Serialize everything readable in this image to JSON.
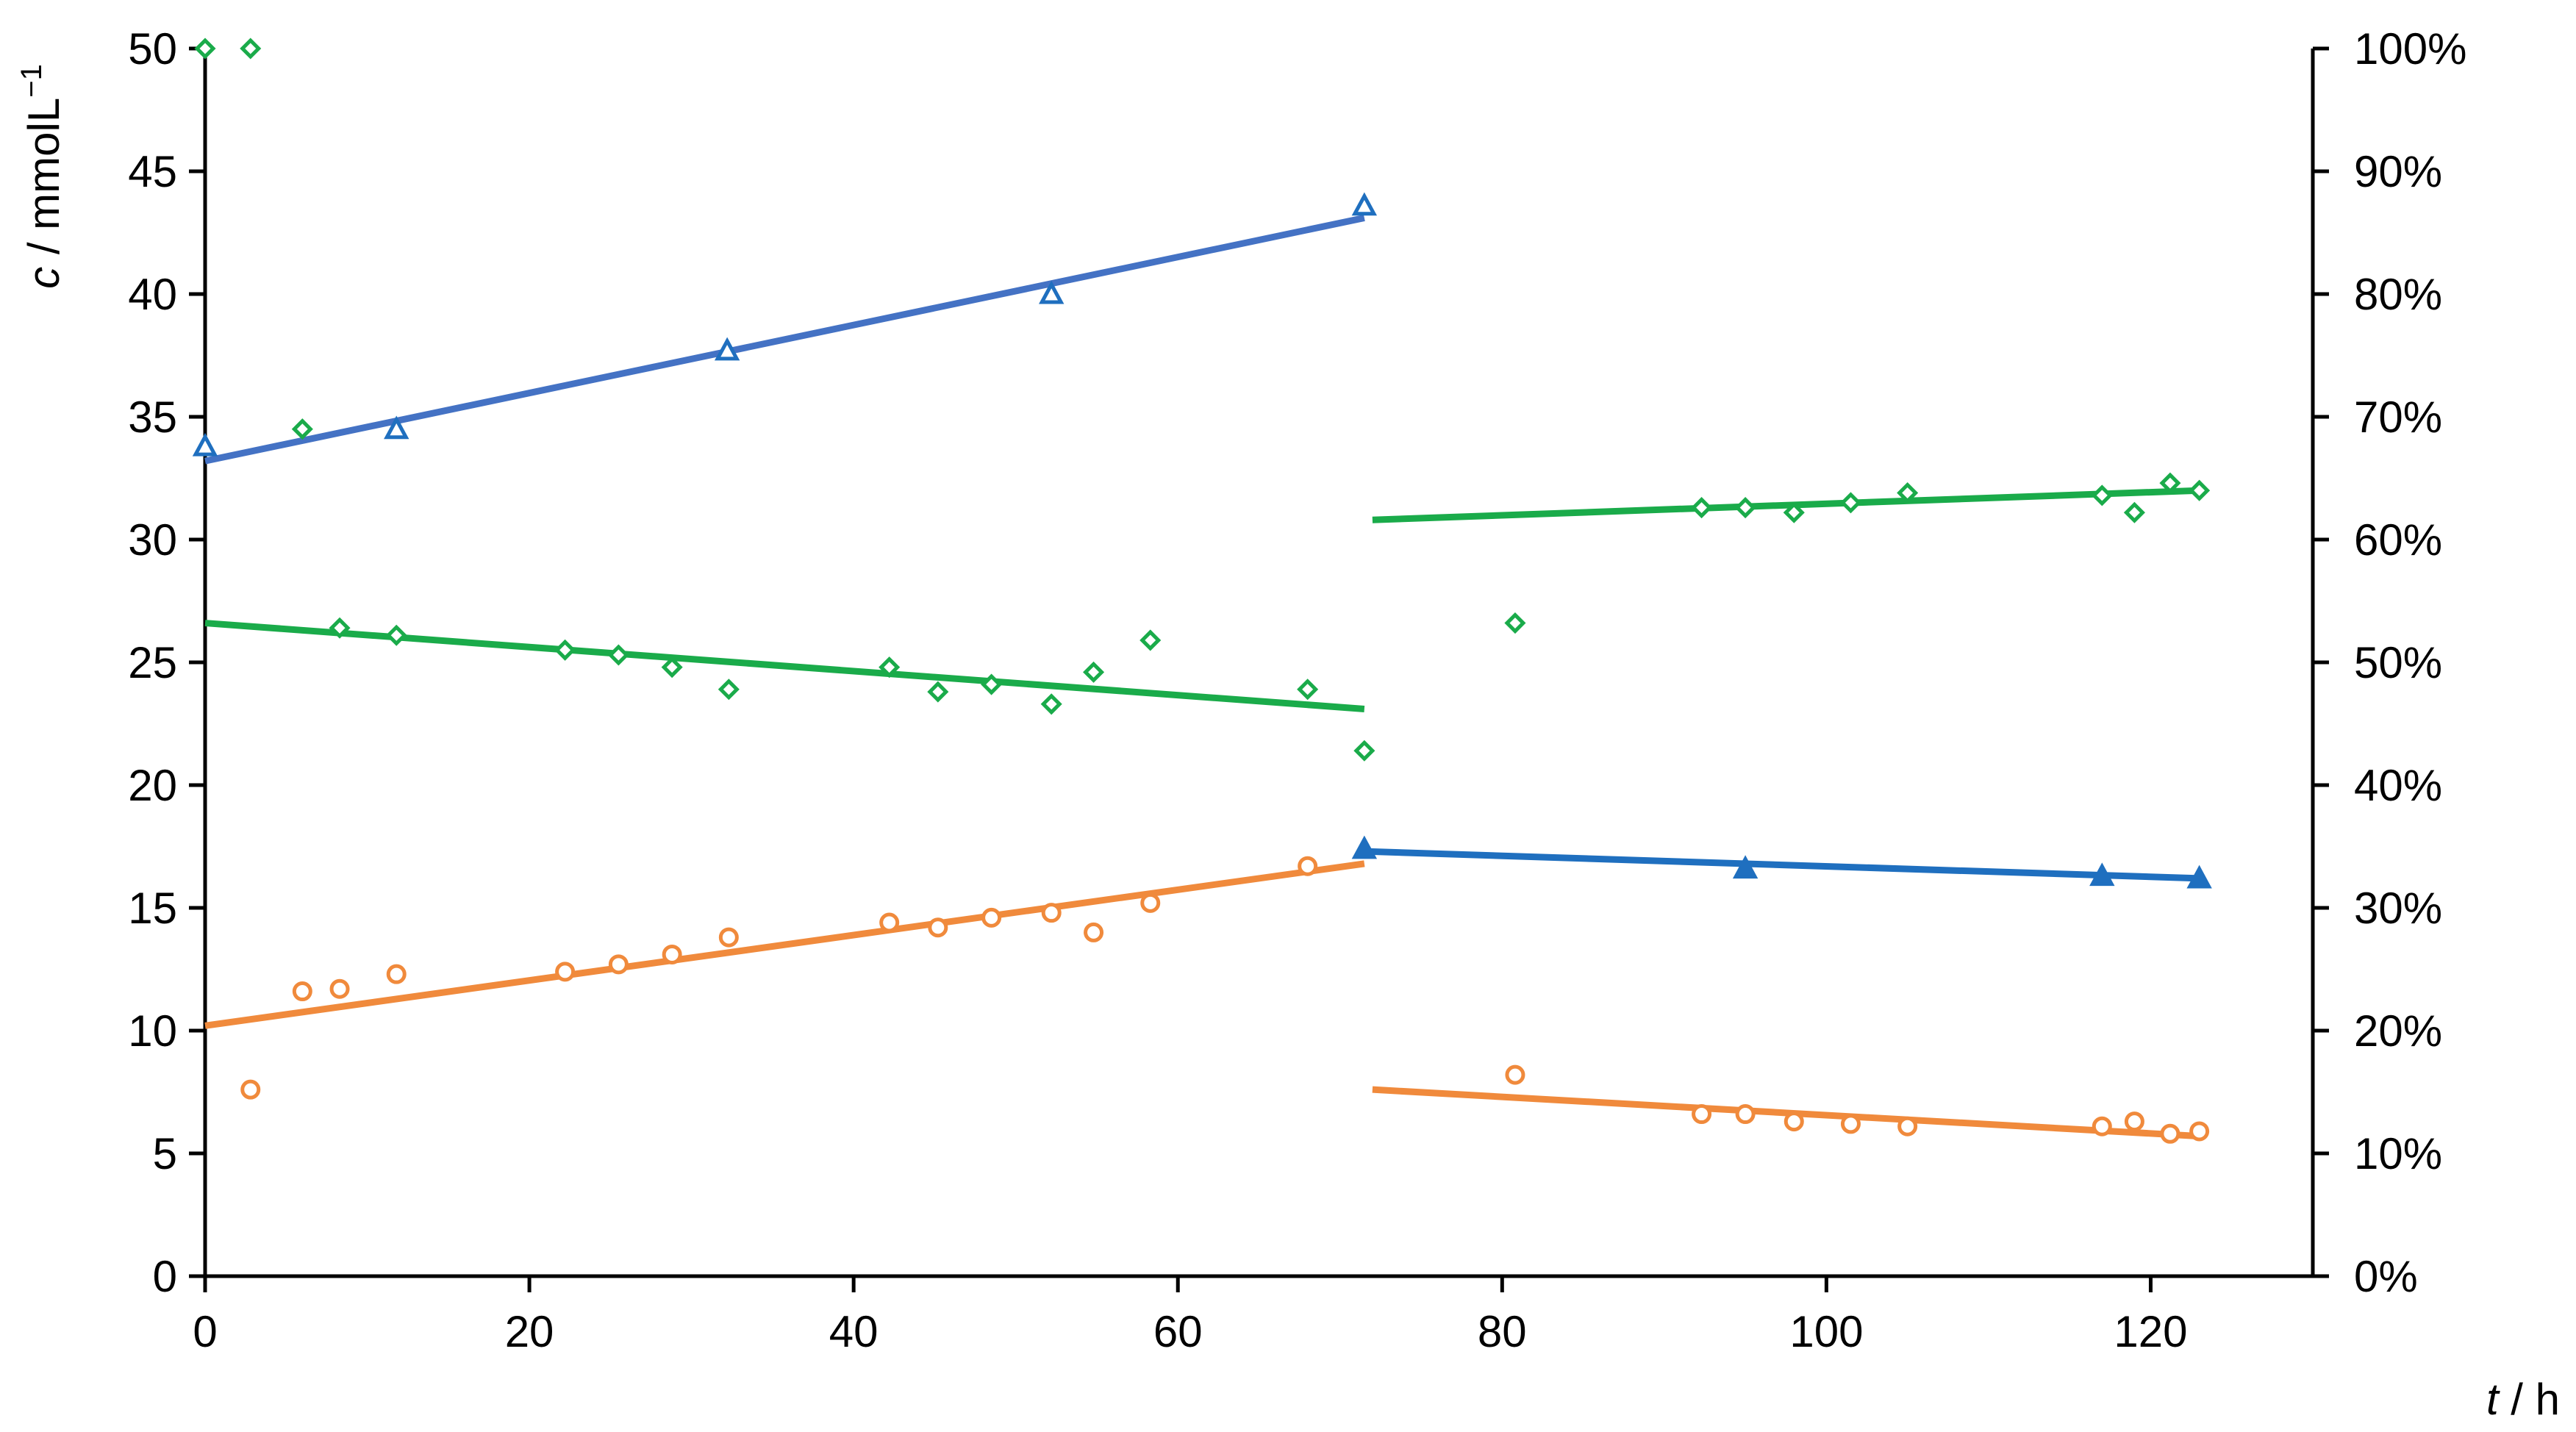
{
  "chart_data": {
    "type": "scatter",
    "y_title_var": "c",
    "y_title_unit": " / mmolL",
    "y_title_sup": "−1",
    "x_title_var": "t",
    "x_title_unit": " / h",
    "xlim": [
      0,
      130
    ],
    "ylim": [
      0,
      50
    ],
    "y2lim": [
      0,
      100
    ],
    "x_ticks": [
      0,
      20,
      40,
      60,
      80,
      100,
      120
    ],
    "x_tick_labels": [
      "0",
      "20",
      "40",
      "60",
      "80",
      "100",
      "120"
    ],
    "y_ticks": [
      0,
      5,
      10,
      15,
      20,
      25,
      30,
      35,
      40,
      45,
      50
    ],
    "y_tick_labels": [
      "0",
      "5",
      "10",
      "15",
      "20",
      "25",
      "30",
      "35",
      "40",
      "45",
      "50"
    ],
    "y2_ticks": [
      0,
      10,
      20,
      30,
      40,
      50,
      60,
      70,
      80,
      90,
      100
    ],
    "y2_tick_labels": [
      "0%",
      "10%",
      "20%",
      "30%",
      "40%",
      "50%",
      "60%",
      "70%",
      "80%",
      "90%",
      "100%"
    ],
    "grid": false,
    "legend": "none",
    "series": [
      {
        "marker": "triangle-open",
        "color": "#1f6fbf",
        "axis": "left",
        "points": [
          [
            0,
            33.8
          ],
          [
            11.8,
            34.5
          ],
          [
            32.2,
            37.7
          ],
          [
            52.2,
            40.0
          ],
          [
            71.5,
            43.6
          ]
        ]
      },
      {
        "marker": "triangle-filled",
        "color": "#1f6fbf",
        "axis": "left",
        "points": [
          [
            71.5,
            17.4
          ],
          [
            95.0,
            16.6
          ],
          [
            117.0,
            16.3
          ],
          [
            123.0,
            16.2
          ]
        ]
      },
      {
        "marker": "diamond-open",
        "color": "#1aab4a",
        "axis": "left",
        "points": [
          [
            0,
            50.0
          ],
          [
            2.8,
            50.0
          ],
          [
            6.0,
            34.5
          ],
          [
            8.3,
            26.4
          ],
          [
            11.8,
            26.1
          ],
          [
            22.2,
            25.5
          ],
          [
            25.5,
            25.3
          ],
          [
            28.8,
            24.8
          ],
          [
            32.3,
            23.9
          ],
          [
            42.2,
            24.8
          ],
          [
            45.2,
            23.8
          ],
          [
            48.5,
            24.1
          ],
          [
            52.2,
            23.3
          ],
          [
            54.8,
            24.6
          ],
          [
            58.3,
            25.9
          ],
          [
            68.0,
            23.9
          ],
          [
            71.5,
            21.4
          ],
          [
            80.8,
            26.6
          ],
          [
            92.3,
            31.3
          ],
          [
            95.0,
            31.3
          ],
          [
            98.0,
            31.1
          ],
          [
            101.5,
            31.5
          ],
          [
            105.0,
            31.9
          ],
          [
            117.0,
            31.8
          ],
          [
            119.0,
            31.1
          ],
          [
            121.2,
            32.3
          ],
          [
            123.0,
            32.0
          ]
        ]
      },
      {
        "marker": "circle-open",
        "color": "#f08a3c",
        "axis": "left",
        "points": [
          [
            2.8,
            7.6
          ],
          [
            6.0,
            11.6
          ],
          [
            8.3,
            11.7
          ],
          [
            11.8,
            12.3
          ],
          [
            22.2,
            12.4
          ],
          [
            25.5,
            12.7
          ],
          [
            28.8,
            13.1
          ],
          [
            32.3,
            13.8
          ],
          [
            42.2,
            14.4
          ],
          [
            45.2,
            14.2
          ],
          [
            48.5,
            14.6
          ],
          [
            52.2,
            14.8
          ],
          [
            54.8,
            14.0
          ],
          [
            58.3,
            15.2
          ],
          [
            68.0,
            16.7
          ],
          [
            80.8,
            8.2
          ],
          [
            92.3,
            6.6
          ],
          [
            95.0,
            6.6
          ],
          [
            98.0,
            6.3
          ],
          [
            101.5,
            6.2
          ],
          [
            105.0,
            6.1
          ],
          [
            117.0,
            6.1
          ],
          [
            119.0,
            6.3
          ],
          [
            121.2,
            5.8
          ],
          [
            123.0,
            5.9
          ]
        ]
      }
    ],
    "trend_lines": [
      {
        "color": "#4472c4",
        "from": [
          0,
          33.2
        ],
        "to": [
          71.5,
          43.1
        ]
      },
      {
        "color": "#1aab4a",
        "from": [
          0,
          26.6
        ],
        "to": [
          71.5,
          23.1
        ]
      },
      {
        "color": "#f08a3c",
        "from": [
          0,
          10.2
        ],
        "to": [
          71.5,
          16.8
        ]
      },
      {
        "color": "#1aab4a",
        "from": [
          72,
          30.8
        ],
        "to": [
          123,
          32.0
        ]
      },
      {
        "color": "#1f6fbf",
        "from": [
          71.5,
          17.3
        ],
        "to": [
          123,
          16.2
        ]
      },
      {
        "color": "#f08a3c",
        "from": [
          72,
          7.6
        ],
        "to": [
          123,
          5.7
        ]
      }
    ]
  }
}
